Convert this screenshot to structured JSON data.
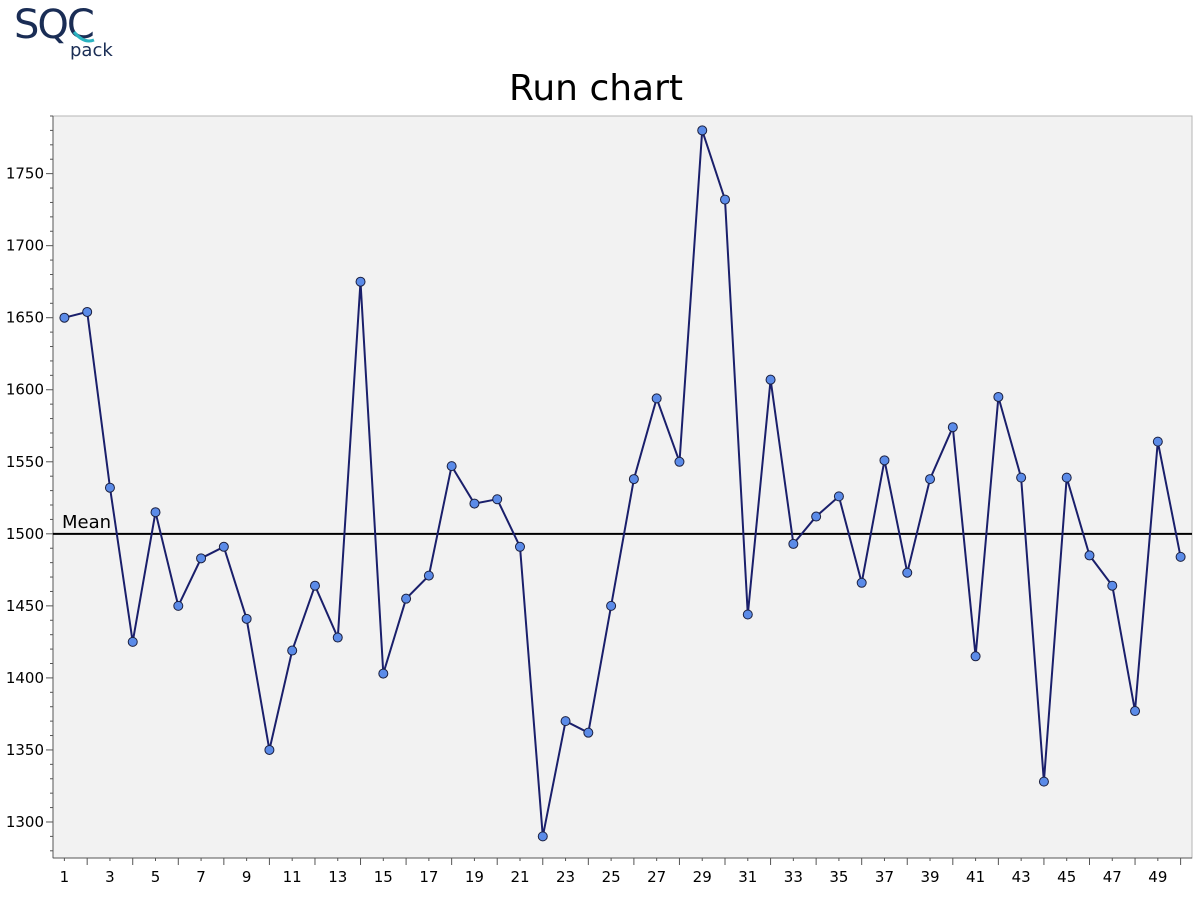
{
  "logo": {
    "text": "SQC",
    "sub": "pack"
  },
  "chart_data": {
    "type": "line",
    "title": "Run chart",
    "xlabel": "",
    "ylabel": "",
    "x": [
      1,
      2,
      3,
      4,
      5,
      6,
      7,
      8,
      9,
      10,
      11,
      12,
      13,
      14,
      15,
      16,
      17,
      18,
      19,
      20,
      21,
      22,
      23,
      24,
      25,
      26,
      27,
      28,
      29,
      30,
      31,
      32,
      33,
      34,
      35,
      36,
      37,
      38,
      39,
      40,
      41,
      42,
      43,
      44,
      45,
      46,
      47,
      48,
      49,
      50
    ],
    "values": [
      1650,
      1654,
      1532,
      1425,
      1515,
      1450,
      1483,
      1491,
      1441,
      1350,
      1419,
      1464,
      1428,
      1675,
      1403,
      1455,
      1471,
      1547,
      1521,
      1524,
      1491,
      1290,
      1370,
      1362,
      1450,
      1538,
      1594,
      1550,
      1780,
      1732,
      1444,
      1607,
      1493,
      1512,
      1526,
      1466,
      1551,
      1473,
      1538,
      1574,
      1415,
      1595,
      1539,
      1328,
      1539,
      1485,
      1464,
      1377,
      1564,
      1484
    ],
    "mean": 1500,
    "mean_label": "Mean",
    "xlim": [
      0.5,
      50.5
    ],
    "ylim": [
      1275,
      1790
    ],
    "x_ticks": [
      1,
      3,
      5,
      7,
      9,
      11,
      13,
      15,
      17,
      19,
      21,
      23,
      25,
      27,
      29,
      31,
      33,
      35,
      37,
      39,
      41,
      43,
      45,
      47,
      49
    ],
    "y_ticks": [
      1300,
      1350,
      1400,
      1450,
      1500,
      1550,
      1600,
      1650,
      1700,
      1750
    ],
    "grid": false,
    "line_color": "#1a1f6b",
    "marker_color": "#5b8be8",
    "plot_background": "#f2f2f2"
  }
}
